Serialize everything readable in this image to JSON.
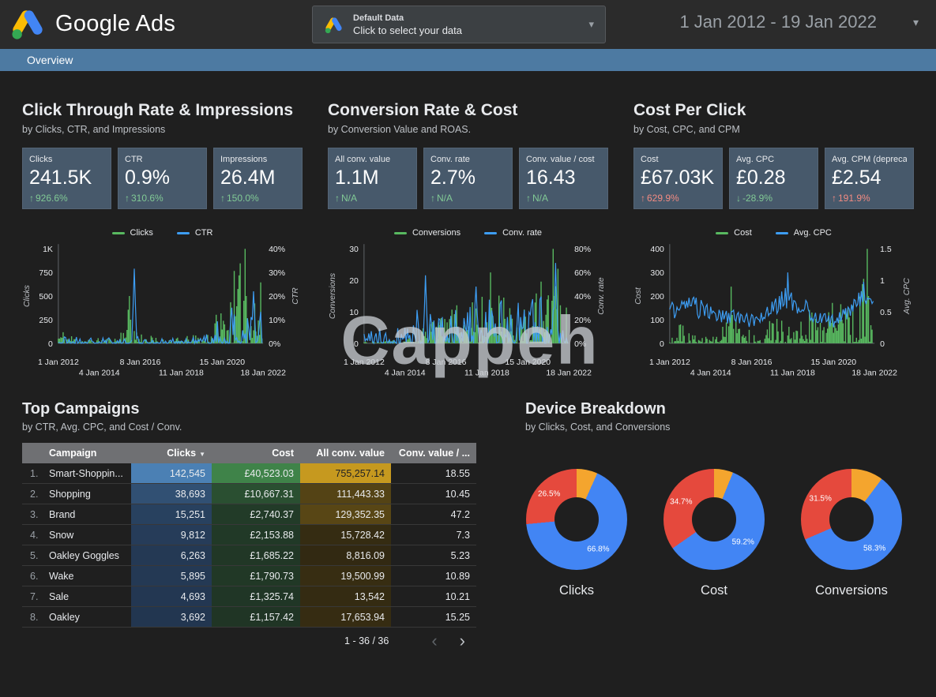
{
  "header": {
    "logo_primary": "Google",
    "logo_secondary": "Ads",
    "data_selector": {
      "title": "Default Data",
      "subtitle": "Click to select your data"
    },
    "date_range": "1 Jan 2012 - 19 Jan 2022"
  },
  "nav": {
    "tab": "Overview"
  },
  "watermark": "Cappeh",
  "sections": [
    {
      "title": "Click Through Rate & Impressions",
      "subtitle": "by Clicks, CTR, and Impressions",
      "scorecards": [
        {
          "label": "Clicks",
          "value": "241.5K",
          "arrow": "↑",
          "delta": "926.6%",
          "trend": "good"
        },
        {
          "label": "CTR",
          "value": "0.9%",
          "arrow": "↑",
          "delta": "310.6%",
          "trend": "good"
        },
        {
          "label": "Impressions",
          "value": "26.4M",
          "arrow": "↑",
          "delta": "150.0%",
          "trend": "good"
        }
      ],
      "chart": {
        "legend": [
          {
            "label": "Clicks",
            "color": "#58b960"
          },
          {
            "label": "CTR",
            "color": "#3d9df3"
          }
        ],
        "left_axis": {
          "title": "Clicks",
          "ticks": [
            "0",
            "250",
            "500",
            "750",
            "1K"
          ]
        },
        "right_axis": {
          "title": "CTR",
          "ticks": [
            "0%",
            "10%",
            "20%",
            "30%",
            "40%"
          ]
        },
        "x_ticks": [
          "1 Jan 2012",
          "4 Jan 2014",
          "8 Jan 2016",
          "11 Jan 2018",
          "15 Jan 2020",
          "18 Jan 2022"
        ],
        "series": [
          {
            "name": "Clicks",
            "color": "#58b960",
            "type": "bars",
            "seed": 11,
            "exp": 2.1,
            "env": [
              [
                0,
                0.2
              ],
              [
                0.06,
                0.11
              ],
              [
                0.15,
                0.05
              ],
              [
                0.28,
                0.07
              ],
              [
                0.34,
                0.38
              ],
              [
                0.4,
                0.14
              ],
              [
                0.5,
                0.05
              ],
              [
                0.62,
                0.07
              ],
              [
                0.72,
                0.12
              ],
              [
                0.8,
                0.45
              ],
              [
                0.87,
                0.8
              ],
              [
                0.93,
                1.0
              ],
              [
                1,
                0.65
              ]
            ],
            "spikes": [
              [
                0.35,
                0.5
              ],
              [
                0.92,
                1.0
              ]
            ]
          },
          {
            "name": "CTR",
            "color": "#3d9df3",
            "type": "line",
            "seed": 21,
            "exp": 3.2,
            "env": [
              [
                0,
                0.1
              ],
              [
                0.2,
                0.07
              ],
              [
                0.35,
                0.08
              ],
              [
                0.55,
                0.06
              ],
              [
                0.7,
                0.1
              ],
              [
                0.8,
                0.3
              ],
              [
                0.9,
                0.5
              ],
              [
                1,
                0.5
              ]
            ],
            "spikes": [
              [
                0.37,
                0.79
              ],
              [
                0.96,
                0.55
              ]
            ]
          }
        ]
      }
    },
    {
      "title": "Conversion Rate & Cost",
      "subtitle": "by Conversion Value and ROAS.",
      "scorecards": [
        {
          "label": "All conv. value",
          "value": "1.1M",
          "arrow": "↑",
          "delta": "N/A",
          "trend": "good"
        },
        {
          "label": "Conv. rate",
          "value": "2.7%",
          "arrow": "↑",
          "delta": "N/A",
          "trend": "good"
        },
        {
          "label": "Conv. value / cost",
          "value": "16.43",
          "arrow": "↑",
          "delta": "N/A",
          "trend": "good"
        }
      ],
      "chart": {
        "legend": [
          {
            "label": "Conversions",
            "color": "#58b960"
          },
          {
            "label": "Conv. rate",
            "color": "#3d9df3"
          }
        ],
        "left_axis": {
          "title": "Conversions",
          "ticks": [
            "0",
            "10",
            "20",
            "30"
          ]
        },
        "right_axis": {
          "title": "Conv. rate",
          "ticks": [
            "0%",
            "20%",
            "40%",
            "60%",
            "80%"
          ]
        },
        "x_ticks": [
          "1 Jan 2012",
          "4 Jan 2014",
          "8 Jan 2016",
          "11 Jan 2018",
          "15 Jan 2020",
          "18 Jan 2022"
        ],
        "series": [
          {
            "name": "Conversions",
            "color": "#58b960",
            "type": "bars",
            "seed": 31,
            "exp": 2.0,
            "env": [
              [
                0,
                0.02
              ],
              [
                0.2,
                0.04
              ],
              [
                0.3,
                0.18
              ],
              [
                0.4,
                0.35
              ],
              [
                0.5,
                0.55
              ],
              [
                0.6,
                0.6
              ],
              [
                0.7,
                0.55
              ],
              [
                0.78,
                0.45
              ],
              [
                0.85,
                0.55
              ],
              [
                0.92,
                1.0
              ],
              [
                1,
                0.55
              ]
            ],
            "spikes": [
              [
                0.62,
                0.75
              ],
              [
                0.93,
                1.0
              ]
            ]
          },
          {
            "name": "Conv. rate",
            "color": "#3d9df3",
            "type": "line",
            "seed": 41,
            "exp": 2.6,
            "env": [
              [
                0,
                0.15
              ],
              [
                0.15,
                0.2
              ],
              [
                0.28,
                0.55
              ],
              [
                0.38,
                0.3
              ],
              [
                0.5,
                0.45
              ],
              [
                0.6,
                0.5
              ],
              [
                0.7,
                0.45
              ],
              [
                0.8,
                0.5
              ],
              [
                0.9,
                0.6
              ],
              [
                1,
                0.35
              ]
            ],
            "spikes": [
              [
                0.3,
                0.72
              ],
              [
                0.55,
                0.6
              ],
              [
                0.94,
                0.85
              ]
            ]
          }
        ]
      }
    },
    {
      "title": "Cost Per Click",
      "subtitle": "by Cost, CPC, and CPM",
      "scorecards": [
        {
          "label": "Cost",
          "value": "£67.03K",
          "arrow": "↑",
          "delta": "629.9%",
          "trend": "bad"
        },
        {
          "label": "Avg. CPC",
          "value": "£0.28",
          "arrow": "↓",
          "delta": "-28.9%",
          "trend": "good"
        },
        {
          "label": "Avg. CPM (deprecated)",
          "value": "£2.54",
          "arrow": "↑",
          "delta": "191.9%",
          "trend": "bad"
        }
      ],
      "chart": {
        "legend": [
          {
            "label": "Cost",
            "color": "#58b960"
          },
          {
            "label": "Avg. CPC",
            "color": "#3d9df3"
          }
        ],
        "left_axis": {
          "title": "Cost",
          "ticks": [
            "0",
            "100",
            "200",
            "300",
            "400"
          ]
        },
        "right_axis": {
          "title": "Avg. CPC",
          "ticks": [
            "0",
            "0.5",
            "1",
            "1.5"
          ]
        },
        "x_ticks": [
          "1 Jan 2012",
          "4 Jan 2014",
          "8 Jan 2016",
          "11 Jan 2018",
          "15 Jan 2020",
          "18 Jan 2022"
        ],
        "series": [
          {
            "name": "Cost",
            "color": "#58b960",
            "type": "bars",
            "seed": 51,
            "exp": 2.0,
            "env": [
              [
                0,
                0.38
              ],
              [
                0.05,
                0.22
              ],
              [
                0.12,
                0.1
              ],
              [
                0.2,
                0.07
              ],
              [
                0.3,
                0.32
              ],
              [
                0.4,
                0.18
              ],
              [
                0.5,
                0.28
              ],
              [
                0.6,
                0.22
              ],
              [
                0.7,
                0.38
              ],
              [
                0.78,
                0.5
              ],
              [
                0.85,
                0.62
              ],
              [
                0.93,
                0.95
              ],
              [
                1,
                0.55
              ]
            ],
            "spikes": [
              [
                0.3,
                0.6
              ],
              [
                0.97,
                1.0
              ]
            ]
          },
          {
            "name": "Avg. CPC",
            "color": "#3d9df3",
            "type": "line",
            "seed": 61,
            "dense": true,
            "env": [
              [
                0,
                0.45
              ],
              [
                0.1,
                0.52
              ],
              [
                0.2,
                0.42
              ],
              [
                0.3,
                0.36
              ],
              [
                0.42,
                0.3
              ],
              [
                0.52,
                0.5
              ],
              [
                0.58,
                0.68
              ],
              [
                0.65,
                0.5
              ],
              [
                0.72,
                0.35
              ],
              [
                0.8,
                0.3
              ],
              [
                0.88,
                0.4
              ],
              [
                0.94,
                0.6
              ],
              [
                1,
                0.5
              ]
            ],
            "spikes": [
              [
                0.58,
                0.75
              ],
              [
                0.95,
                0.65
              ]
            ]
          }
        ]
      }
    }
  ],
  "campaign_table": {
    "title": "Top Campaigns",
    "subtitle": "by CTR, Avg. CPC, and Cost / Conv.",
    "columns": [
      "Campaign",
      "Clicks",
      "Cost",
      "All conv. value",
      "Conv. value / ..."
    ],
    "sorted_by": "Clicks",
    "rows": [
      {
        "rank": "1.",
        "campaign": "Smart-Shoppin...",
        "clicks": "142,545",
        "cost": "£40,523.03",
        "conv_value": "755,257.14",
        "ratio": "18.55",
        "clicks_n": 142545,
        "cost_n": 40523.03,
        "conv_n": 755257.14
      },
      {
        "rank": "2.",
        "campaign": "Shopping",
        "clicks": "38,693",
        "cost": "£10,667.31",
        "conv_value": "111,443.33",
        "ratio": "10.45",
        "clicks_n": 38693,
        "cost_n": 10667.31,
        "conv_n": 111443.33
      },
      {
        "rank": "3.",
        "campaign": "Brand",
        "clicks": "15,251",
        "cost": "£2,740.37",
        "conv_value": "129,352.35",
        "ratio": "47.2",
        "clicks_n": 15251,
        "cost_n": 2740.37,
        "conv_n": 129352.35
      },
      {
        "rank": "4.",
        "campaign": "Snow",
        "clicks": "9,812",
        "cost": "£2,153.88",
        "conv_value": "15,728.42",
        "ratio": "7.3",
        "clicks_n": 9812,
        "cost_n": 2153.88,
        "conv_n": 15728.42
      },
      {
        "rank": "5.",
        "campaign": "Oakley Goggles",
        "clicks": "6,263",
        "cost": "£1,685.22",
        "conv_value": "8,816.09",
        "ratio": "5.23",
        "clicks_n": 6263,
        "cost_n": 1685.22,
        "conv_n": 8816.09
      },
      {
        "rank": "6.",
        "campaign": "Wake",
        "clicks": "5,895",
        "cost": "£1,790.73",
        "conv_value": "19,500.99",
        "ratio": "10.89",
        "clicks_n": 5895,
        "cost_n": 1790.73,
        "conv_n": 19500.99
      },
      {
        "rank": "7.",
        "campaign": "Sale",
        "clicks": "4,693",
        "cost": "£1,325.74",
        "conv_value": "13,542",
        "ratio": "10.21",
        "clicks_n": 4693,
        "cost_n": 1325.74,
        "conv_n": 13542
      },
      {
        "rank": "8.",
        "campaign": "Oakley",
        "clicks": "3,692",
        "cost": "£1,157.42",
        "conv_value": "17,653.94",
        "ratio": "15.25",
        "clicks_n": 3692,
        "cost_n": 1157.42,
        "conv_n": 17653.94
      }
    ],
    "heat": {
      "clicks": {
        "low": "#1f3048",
        "high": "#4b80b4"
      },
      "cost": {
        "low": "#1d2e22",
        "high": "#3f8349"
      },
      "conv": {
        "low": "#2b2411",
        "high": "#c6991f"
      }
    },
    "pagination": {
      "range": "1 - 36 / 36",
      "prev": "‹",
      "next": "›"
    }
  },
  "device_breakdown": {
    "title": "Device Breakdown",
    "subtitle": "by Clicks, Cost, and Conversions",
    "palette": {
      "blue": "#4285f4",
      "red": "#e5493d",
      "yellow": "#f4a52e"
    },
    "donuts": [
      {
        "label": "Clicks",
        "slices": [
          {
            "color": "yellow",
            "pct": 6.7,
            "text": ""
          },
          {
            "color": "blue",
            "pct": 66.8,
            "text": "66.8%"
          },
          {
            "color": "red",
            "pct": 26.5,
            "text": "26.5%"
          }
        ]
      },
      {
        "label": "Cost",
        "slices": [
          {
            "color": "yellow",
            "pct": 6.1,
            "text": ""
          },
          {
            "color": "blue",
            "pct": 59.2,
            "text": "59.2%"
          },
          {
            "color": "red",
            "pct": 34.7,
            "text": "34.7%"
          }
        ]
      },
      {
        "label": "Conversions",
        "slices": [
          {
            "color": "yellow",
            "pct": 10.2,
            "text": ""
          },
          {
            "color": "blue",
            "pct": 58.3,
            "text": "58.3%"
          },
          {
            "color": "red",
            "pct": 31.5,
            "text": "31.5%"
          }
        ]
      }
    ]
  }
}
